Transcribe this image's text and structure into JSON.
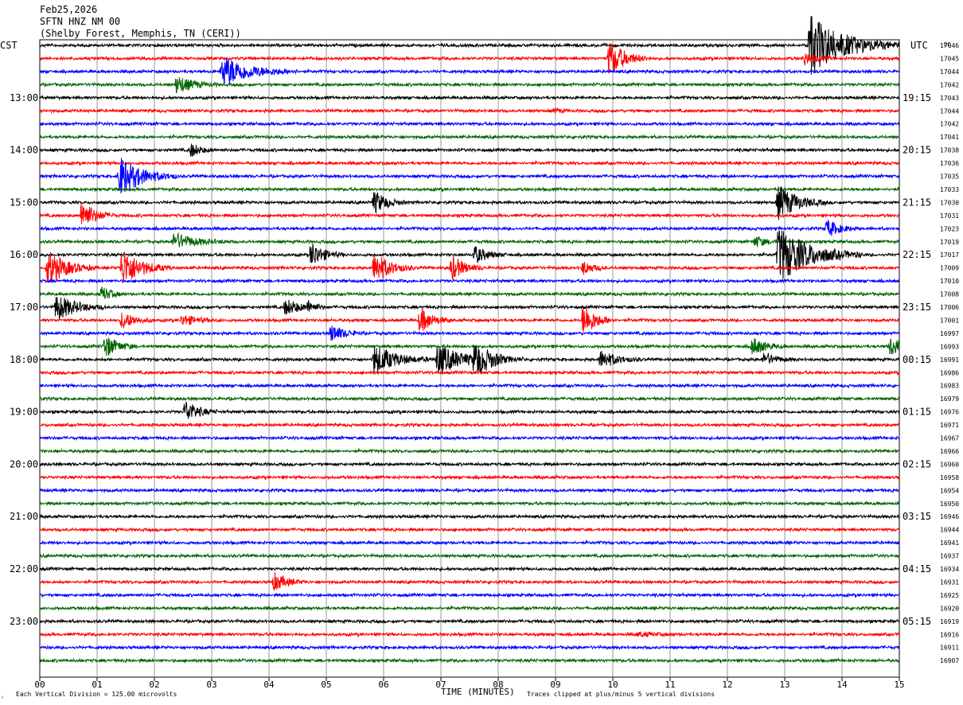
{
  "header": {
    "date": "Feb25,2026",
    "station": "SFTN HNZ NM 00",
    "location": "(Shelby Forest, Memphis, TN (CERI))"
  },
  "left_label": "CST",
  "right_label": "UTC",
  "right_col_header": "DC",
  "footer": {
    "scale": "Each Vertical Division =  125.00 microvolts",
    "xlabel": "TIME (MINUTES)",
    "clip": "Traces clipped at plus/minus 5 vertical divisions"
  },
  "chart_data": {
    "type": "line",
    "title": "SFTN HNZ NM 00",
    "xlabel": "TIME (MINUTES)",
    "ylabel": "",
    "xlim": [
      0,
      15
    ],
    "x_ticks": [
      "00",
      "01",
      "02",
      "03",
      "04",
      "05",
      "06",
      "07",
      "08",
      "09",
      "10",
      "11",
      "12",
      "13",
      "14",
      "15"
    ],
    "traces_per_hour": 4,
    "minutes_per_trace": 15,
    "series_colors": [
      "#000000",
      "#ff0000",
      "#0000ff",
      "#006400"
    ],
    "left_hour_labels": [
      {
        "trace": 4,
        "label": "13:00"
      },
      {
        "trace": 8,
        "label": "14:00"
      },
      {
        "trace": 12,
        "label": "15:00"
      },
      {
        "trace": 16,
        "label": "16:00"
      },
      {
        "trace": 20,
        "label": "17:00"
      },
      {
        "trace": 24,
        "label": "18:00"
      },
      {
        "trace": 28,
        "label": "19:00"
      },
      {
        "trace": 32,
        "label": "20:00"
      },
      {
        "trace": 36,
        "label": "21:00"
      },
      {
        "trace": 40,
        "label": "22:00"
      },
      {
        "trace": 44,
        "label": "23:00"
      }
    ],
    "right_hour_labels": [
      {
        "trace": 4,
        "label": "19:15"
      },
      {
        "trace": 8,
        "label": "20:15"
      },
      {
        "trace": 12,
        "label": "21:15"
      },
      {
        "trace": 16,
        "label": "22:15"
      },
      {
        "trace": 20,
        "label": "23:15"
      },
      {
        "trace": 24,
        "label": "00:15"
      },
      {
        "trace": 28,
        "label": "01:15"
      },
      {
        "trace": 32,
        "label": "02:15"
      },
      {
        "trace": 36,
        "label": "03:15"
      },
      {
        "trace": 40,
        "label": "04:15"
      },
      {
        "trace": 44,
        "label": "05:15"
      }
    ],
    "dc_offsets": [
      "17046",
      "17045",
      "17044",
      "17042",
      "17043",
      "17044",
      "17042",
      "17041",
      "17038",
      "17036",
      "17035",
      "17033",
      "17030",
      "17031",
      "17023",
      "17019",
      "17017",
      "17009",
      "17010",
      "17008",
      "17006",
      "17001",
      "16997",
      "16993",
      "16991",
      "16986",
      "16983",
      "16979",
      "16976",
      "16971",
      "16967",
      "16966",
      "16960",
      "16958",
      "16954",
      "16950",
      "16946",
      "16944",
      "16941",
      "16937",
      "16934",
      "16931",
      "16925",
      "16920",
      "16919",
      "16916",
      "16911",
      "16907"
    ],
    "noise_amplitude": 1.6,
    "events": [
      {
        "trace": 0,
        "x": 13.4,
        "amp": 42,
        "dur": 0.55
      },
      {
        "trace": 1,
        "x": 9.9,
        "amp": 28,
        "dur": 0.25
      },
      {
        "trace": 1,
        "x": 13.3,
        "amp": 10,
        "dur": 0.2
      },
      {
        "trace": 2,
        "x": 3.15,
        "amp": 22,
        "dur": 0.45
      },
      {
        "trace": 3,
        "x": 2.35,
        "amp": 14,
        "dur": 0.25
      },
      {
        "trace": 5,
        "x": 8.95,
        "amp": 4,
        "dur": 0.1
      },
      {
        "trace": 8,
        "x": 2.6,
        "amp": 12,
        "dur": 0.15
      },
      {
        "trace": 10,
        "x": 1.35,
        "amp": 30,
        "dur": 0.35
      },
      {
        "trace": 12,
        "x": 5.8,
        "amp": 18,
        "dur": 0.2
      },
      {
        "trace": 12,
        "x": 12.85,
        "amp": 26,
        "dur": 0.3
      },
      {
        "trace": 13,
        "x": 0.7,
        "amp": 24,
        "dur": 0.2
      },
      {
        "trace": 14,
        "x": 13.7,
        "amp": 14,
        "dur": 0.2
      },
      {
        "trace": 15,
        "x": 2.3,
        "amp": 12,
        "dur": 0.35
      },
      {
        "trace": 15,
        "x": 12.45,
        "amp": 10,
        "dur": 0.15
      },
      {
        "trace": 16,
        "x": 4.7,
        "amp": 20,
        "dur": 0.2
      },
      {
        "trace": 16,
        "x": 7.55,
        "amp": 14,
        "dur": 0.2
      },
      {
        "trace": 16,
        "x": 12.85,
        "amp": 40,
        "dur": 0.5
      },
      {
        "trace": 17,
        "x": 0.1,
        "amp": 26,
        "dur": 0.3
      },
      {
        "trace": 17,
        "x": 1.4,
        "amp": 28,
        "dur": 0.3
      },
      {
        "trace": 17,
        "x": 5.8,
        "amp": 24,
        "dur": 0.25
      },
      {
        "trace": 17,
        "x": 7.15,
        "amp": 20,
        "dur": 0.2
      },
      {
        "trace": 17,
        "x": 9.45,
        "amp": 12,
        "dur": 0.15
      },
      {
        "trace": 19,
        "x": 1.05,
        "amp": 12,
        "dur": 0.15
      },
      {
        "trace": 20,
        "x": 0.25,
        "amp": 20,
        "dur": 0.3
      },
      {
        "trace": 20,
        "x": 4.25,
        "amp": 12,
        "dur": 0.25
      },
      {
        "trace": 20,
        "x": 4.65,
        "amp": 10,
        "dur": 0.1
      },
      {
        "trace": 21,
        "x": 1.4,
        "amp": 14,
        "dur": 0.2
      },
      {
        "trace": 21,
        "x": 2.45,
        "amp": 8,
        "dur": 0.25
      },
      {
        "trace": 21,
        "x": 6.6,
        "amp": 20,
        "dur": 0.2
      },
      {
        "trace": 21,
        "x": 9.45,
        "amp": 26,
        "dur": 0.2
      },
      {
        "trace": 22,
        "x": 5.05,
        "amp": 14,
        "dur": 0.2
      },
      {
        "trace": 23,
        "x": 1.1,
        "amp": 18,
        "dur": 0.2
      },
      {
        "trace": 23,
        "x": 12.4,
        "amp": 14,
        "dur": 0.2
      },
      {
        "trace": 23,
        "x": 14.8,
        "amp": 16,
        "dur": 0.2
      },
      {
        "trace": 24,
        "x": 5.8,
        "amp": 22,
        "dur": 0.35
      },
      {
        "trace": 24,
        "x": 6.9,
        "amp": 22,
        "dur": 0.4
      },
      {
        "trace": 24,
        "x": 7.55,
        "amp": 22,
        "dur": 0.3
      },
      {
        "trace": 24,
        "x": 9.75,
        "amp": 14,
        "dur": 0.25
      },
      {
        "trace": 24,
        "x": 12.6,
        "amp": 10,
        "dur": 0.2
      },
      {
        "trace": 28,
        "x": 2.5,
        "amp": 18,
        "dur": 0.2
      },
      {
        "trace": 41,
        "x": 4.05,
        "amp": 14,
        "dur": 0.2
      },
      {
        "trace": 45,
        "x": 10.4,
        "amp": 3,
        "dur": 0.3
      }
    ]
  }
}
